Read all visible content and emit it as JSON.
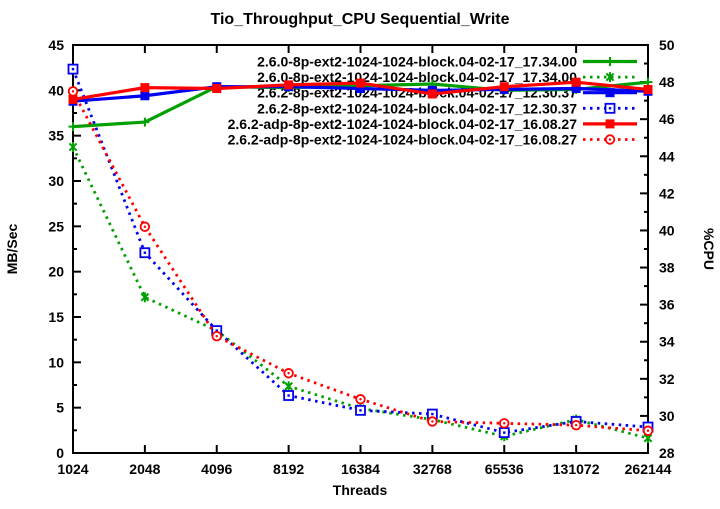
{
  "chart_data": {
    "type": "line",
    "title": "Tio_Throughput_CPU Sequential_Write",
    "xlabel": "Threads",
    "ylabel_left": "MB/Sec",
    "ylabel_right": "%CPU",
    "grid": false,
    "legend_position": "inside-top-right",
    "x_categories": [
      "1024",
      "2048",
      "4096",
      "8192",
      "16384",
      "32768",
      "65536",
      "131072",
      "262144"
    ],
    "y_left": {
      "min": 0,
      "max": 45,
      "major_step": 5,
      "minor_step": 2.5,
      "tick_labels": [
        "0",
        "5",
        "10",
        "15",
        "20",
        "25",
        "30",
        "35",
        "40",
        "45"
      ]
    },
    "y_right": {
      "min": 28,
      "max": 50,
      "major_step": 2,
      "minor_step": 1,
      "tick_labels": [
        "28",
        "30",
        "32",
        "34",
        "36",
        "38",
        "40",
        "42",
        "44",
        "46",
        "48",
        "50"
      ]
    },
    "series": [
      {
        "name": "2.6.0-8p-ext2-1024-1024-block.04-02-17_17.34.00",
        "metric": "throughput",
        "axis": "left",
        "color": "#00A000",
        "line": "solid",
        "marker": "plus",
        "values": [
          36.0,
          36.5,
          40.4,
          40.3,
          40.5,
          40.7,
          40.0,
          40.1,
          40.9
        ]
      },
      {
        "name": "2.6.0-8p-ext2-1024-1024-block.04-02-17_17.34.00",
        "metric": "cpu",
        "axis": "right",
        "color": "#00A000",
        "line": "dotted",
        "marker": "asterisk",
        "values": [
          44.5,
          36.4,
          34.6,
          31.6,
          30.4,
          29.8,
          28.9,
          29.8,
          28.8
        ]
      },
      {
        "name": "2.6.2-8p-ext2-1024-1024-block.04-02-17_12.30.37",
        "metric": "throughput",
        "axis": "left",
        "color": "#0000F0",
        "line": "solid",
        "marker": "square-filled",
        "values": [
          38.8,
          39.4,
          40.4,
          40.4,
          40.2,
          40.0,
          40.1,
          40.2,
          39.9
        ]
      },
      {
        "name": "2.6.2-8p-ext2-1024-1024-block.04-02-17_12.30.37",
        "metric": "cpu",
        "axis": "right",
        "color": "#0000F0",
        "line": "dotted",
        "marker": "square-open",
        "values": [
          48.7,
          38.8,
          34.6,
          31.1,
          30.3,
          30.1,
          29.1,
          29.7,
          29.4
        ]
      },
      {
        "name": "2.6.2-adp-8p-ext2-1024-1024-block.04-02-17_16.08.27",
        "metric": "throughput",
        "axis": "left",
        "color": "#FF0000",
        "line": "solid",
        "marker": "square-filled",
        "values": [
          39.0,
          40.3,
          40.2,
          40.6,
          40.8,
          39.6,
          40.4,
          40.9,
          40.1
        ]
      },
      {
        "name": "2.6.2-adp-8p-ext2-1024-1024-block.04-02-17_16.08.27",
        "metric": "cpu",
        "axis": "right",
        "color": "#FF0000",
        "line": "dotted",
        "marker": "circle-open",
        "values": [
          47.5,
          40.2,
          34.3,
          32.3,
          30.9,
          29.7,
          29.6,
          29.5,
          29.2
        ]
      }
    ]
  }
}
